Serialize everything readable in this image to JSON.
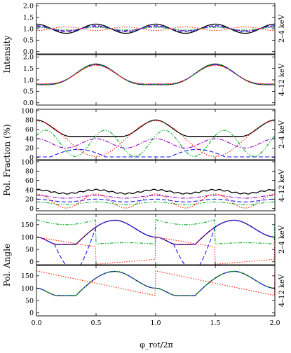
{
  "chart_data": {
    "type": "line",
    "x_label": "φ_rot/2π",
    "x_ticks": [
      "0.0",
      "0.5",
      "1.0",
      "1.5",
      "2.0"
    ],
    "xlim": [
      0,
      2
    ],
    "line_styles": [
      {
        "color": "#000000",
        "dash": "solid"
      },
      {
        "color": "#1a1aff",
        "dash": "dashed"
      },
      {
        "color": "#9900cc",
        "dash": "dashdot"
      },
      {
        "color": "#00b020",
        "dash": "dashdotdot"
      },
      {
        "color": "#ff2200",
        "dash": "dotted"
      }
    ],
    "group_titles": [
      "Intensity",
      "Pol. Fraction (%)",
      "Pol. Angle"
    ],
    "panels": [
      {
        "group": 0,
        "band": "2–4 keV",
        "ylim": [
          -0.1,
          2.1
        ],
        "yticks": [
          "0.0",
          "0.5",
          "1.0",
          "1.5",
          "2.0"
        ],
        "series": [
          {
            "style": 0,
            "fn": "intSoft",
            "amp": 0.2
          },
          {
            "style": 1,
            "fn": "intSoft",
            "amp": 0.13
          },
          {
            "style": 2,
            "fn": "intSoft",
            "amp": 0.09
          },
          {
            "style": 3,
            "fn": "intSoft",
            "amp": 0.06
          },
          {
            "style": 4,
            "fn": "intSoft",
            "amp": -0.08
          }
        ]
      },
      {
        "group": 0,
        "band": "4–12 keV",
        "ylim": [
          -0.1,
          2.1
        ],
        "yticks": [
          "0.0",
          "0.5",
          "1.0",
          "1.5",
          "2.0"
        ],
        "series": [
          {
            "style": 0,
            "fn": "intHard",
            "amp": 1.0
          },
          {
            "style": 1,
            "fn": "intHard",
            "amp": 0.96
          },
          {
            "style": 2,
            "fn": "intHard",
            "amp": 0.93
          },
          {
            "style": 3,
            "fn": "intHard",
            "amp": 0.98
          },
          {
            "style": 4,
            "fn": "intHard",
            "amp": 0.9
          }
        ]
      },
      {
        "group": 1,
        "band": "2–4 keV",
        "ylim": [
          -5,
          103
        ],
        "yticks": [
          "0",
          "20",
          "40",
          "60",
          "80",
          "100"
        ],
        "series": [
          {
            "style": 0,
            "fn": "pfBlack"
          },
          {
            "style": 1,
            "fn": "pfBlue"
          },
          {
            "style": 2,
            "fn": "pfPurple"
          },
          {
            "style": 3,
            "fn": "pfGreen"
          },
          {
            "style": 4,
            "fn": "pfRed"
          }
        ]
      },
      {
        "group": 1,
        "band": "4–12 keV",
        "ylim": [
          -5,
          103
        ],
        "yticks": [
          "0",
          "20",
          "40",
          "60",
          "80",
          "100"
        ],
        "series": [
          {
            "style": 0,
            "fn": "pfhBlack"
          },
          {
            "style": 1,
            "fn": "pfhBlue"
          },
          {
            "style": 2,
            "fn": "pfhPurple"
          },
          {
            "style": 3,
            "fn": "pfhGreen"
          },
          {
            "style": 4,
            "fn": "pfhRed"
          }
        ]
      },
      {
        "group": 2,
        "band": "2–4 keV",
        "ylim": [
          -12,
          192
        ],
        "yticks": [
          "0",
          "50",
          "100",
          "150"
        ],
        "series": [
          {
            "style": 0,
            "fn": "paMain"
          },
          {
            "style": 2,
            "fn": "paMain"
          },
          {
            "style": 1,
            "fn": "paBlue"
          },
          {
            "style": 3,
            "fn": "paGreen"
          },
          {
            "style": 4,
            "fn": "paRedSoft"
          }
        ]
      },
      {
        "group": 2,
        "band": "4–12 keV",
        "ylim": [
          -12,
          192
        ],
        "yticks": [
          "0",
          "50",
          "100",
          "150"
        ],
        "series": [
          {
            "style": 0,
            "fn": "paMain"
          },
          {
            "style": 2,
            "fn": "paMain"
          },
          {
            "style": 1,
            "fn": "paMain"
          },
          {
            "style": 3,
            "fn": "paGreenHard"
          },
          {
            "style": 4,
            "fn": "paRedHard"
          }
        ]
      }
    ]
  }
}
